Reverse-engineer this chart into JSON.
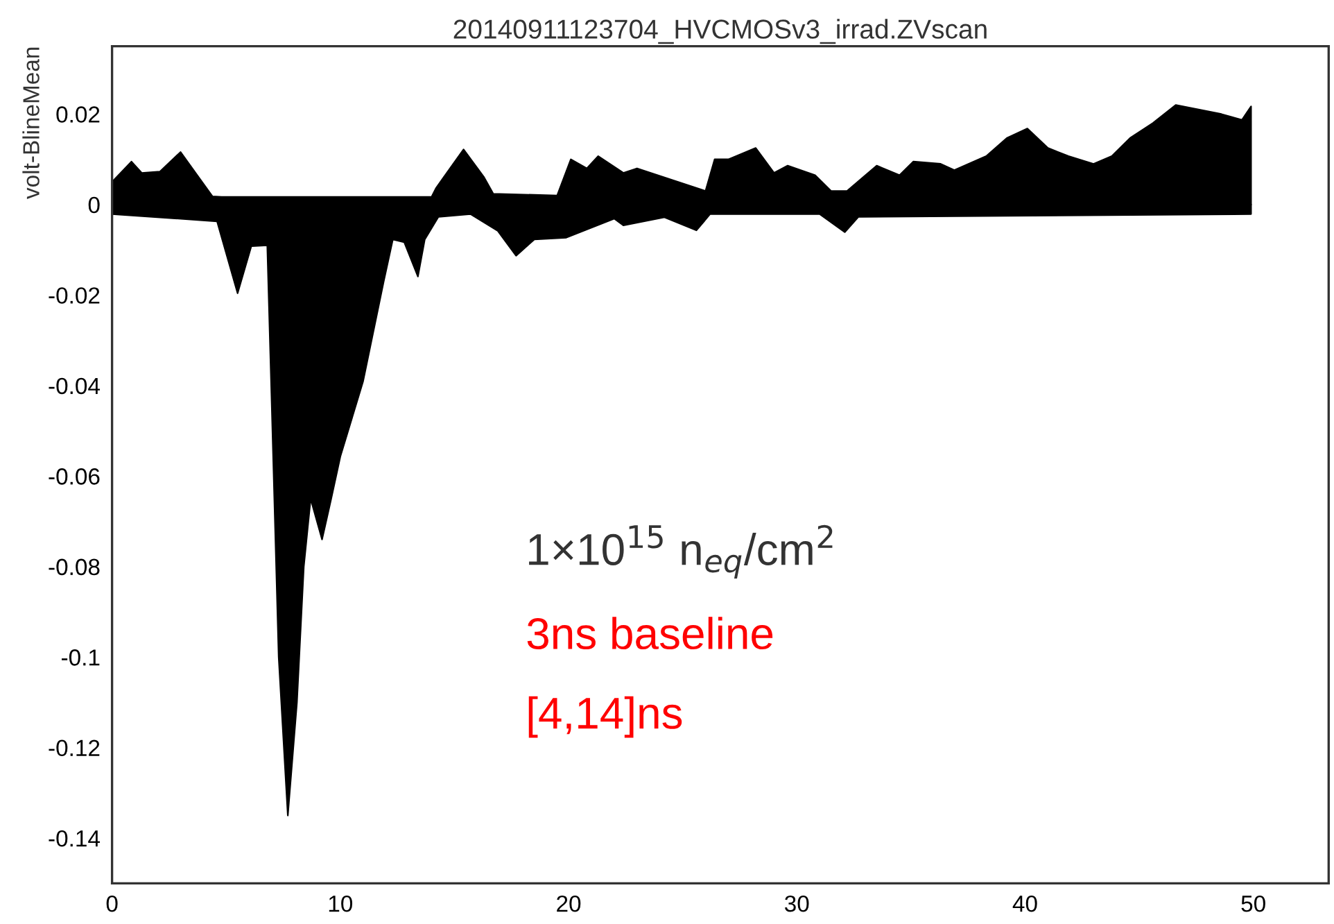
{
  "chart_data": {
    "type": "area",
    "title": "20140911123704_HVCMOSv3_irrad.ZVscan",
    "ylabel": "volt-BlineMean",
    "annotations": [
      "1×10$^{15}$ n$_{eq}$/cm$^{2}$",
      "3ns baseline",
      "[4,14]ns"
    ],
    "xlim": [
      0,
      53.3
    ],
    "ylim": [
      -0.15,
      0.035
    ],
    "xticks": [
      0,
      10,
      20,
      30,
      40,
      50
    ],
    "yticks": [
      -0.14,
      -0.12,
      -0.1,
      -0.08,
      -0.06,
      -0.04,
      -0.02,
      0,
      0.02
    ],
    "grid": false,
    "legend": false,
    "series": [
      {
        "color": "#000000",
        "x": [
          0,
          0.85,
          1.3,
          2.1,
          3.0,
          4.4,
          4.8,
          14.0,
          14.2,
          15.4,
          16.3,
          16.7,
          19.5,
          20.1,
          20.8,
          21.3,
          22.4,
          23.0,
          24.2,
          26.0,
          26.4,
          27.0,
          28.2,
          29.0,
          29.6,
          30.8,
          31.5,
          32.2,
          33.5,
          34.5,
          35.1,
          36.3,
          36.9,
          38.3,
          39.2,
          40.1,
          41.0,
          41.9,
          43.0,
          43.8,
          44.6,
          45.6,
          46.6,
          47.6,
          48.6,
          49.5,
          49.9
        ],
        "values": [
          0.005,
          0.0095,
          0.007,
          0.0073,
          0.0116,
          0.0018,
          0.0017,
          0.0017,
          0.0037,
          0.0122,
          0.006,
          0.0024,
          0.002,
          0.01,
          0.008,
          0.0107,
          0.007,
          0.008,
          0.006,
          0.003,
          0.01,
          0.01,
          0.0125,
          0.007,
          0.0086,
          0.0065,
          0.003,
          0.003,
          0.0086,
          0.0065,
          0.0095,
          0.009,
          0.0076,
          0.0107,
          0.0147,
          0.0168,
          0.0125,
          0.0107,
          0.009,
          0.0107,
          0.0147,
          0.018,
          0.022,
          0.021,
          0.02,
          0.0187,
          0.0217
        ]
      },
      {
        "color": "#000000",
        "x": [
          0,
          4.6,
          5.5,
          6.1,
          6.8,
          7.0,
          7.3,
          7.7,
          8.1,
          8.4,
          8.7,
          9.2,
          9.6,
          10.0,
          11.0,
          11.9,
          12.3,
          12.8,
          13.4,
          13.7,
          14.3,
          15.7,
          16.9,
          17.7,
          18.5,
          19.9,
          22.0,
          22.4,
          24.2,
          25.6,
          26.2,
          31.0,
          32.1,
          32.7,
          49.9
        ],
        "values": [
          -0.0021,
          -0.0037,
          -0.0196,
          -0.0092,
          -0.009,
          -0.045,
          -0.1,
          -0.135,
          -0.11,
          -0.08,
          -0.065,
          -0.074,
          -0.065,
          -0.0557,
          -0.039,
          -0.017,
          -0.0077,
          -0.0083,
          -0.0159,
          -0.0077,
          -0.0027,
          -0.0021,
          -0.0058,
          -0.0113,
          -0.0077,
          -0.0073,
          -0.0031,
          -0.0046,
          -0.0028,
          -0.0057,
          -0.0021,
          -0.0021,
          -0.0061,
          -0.0027,
          -0.0021
        ]
      }
    ]
  }
}
